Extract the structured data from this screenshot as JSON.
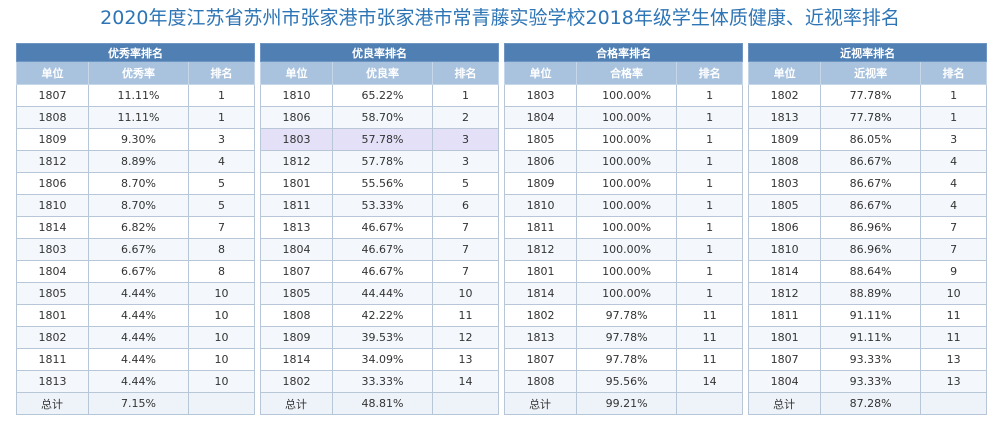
{
  "page_title": "2020年度江苏省苏州市张家港市张家港市常青藤实验学校2018年级学生体质健康、近视率排名",
  "tables": [
    {
      "title": "优秀率排名",
      "headers": [
        "单位",
        "优秀率",
        "排名"
      ],
      "rows": [
        [
          "1807",
          "11.11%",
          "1"
        ],
        [
          "1808",
          "11.11%",
          "1"
        ],
        [
          "1809",
          "9.30%",
          "3"
        ],
        [
          "1812",
          "8.89%",
          "4"
        ],
        [
          "1806",
          "8.70%",
          "5"
        ],
        [
          "1810",
          "8.70%",
          "5"
        ],
        [
          "1814",
          "6.82%",
          "7"
        ],
        [
          "1803",
          "6.67%",
          "8"
        ],
        [
          "1804",
          "6.67%",
          "8"
        ],
        [
          "1805",
          "4.44%",
          "10"
        ],
        [
          "1801",
          "4.44%",
          "10"
        ],
        [
          "1802",
          "4.44%",
          "10"
        ],
        [
          "1811",
          "4.44%",
          "10"
        ],
        [
          "1813",
          "4.44%",
          "10"
        ]
      ],
      "total": [
        "总计",
        "7.15%",
        ""
      ]
    },
    {
      "title": "优良率排名",
      "headers": [
        "单位",
        "优良率",
        "排名"
      ],
      "rows": [
        [
          "1810",
          "65.22%",
          "1"
        ],
        [
          "1806",
          "58.70%",
          "2"
        ],
        [
          "1803",
          "57.78%",
          "3"
        ],
        [
          "1812",
          "57.78%",
          "3"
        ],
        [
          "1801",
          "55.56%",
          "5"
        ],
        [
          "1811",
          "53.33%",
          "6"
        ],
        [
          "1813",
          "46.67%",
          "7"
        ],
        [
          "1804",
          "46.67%",
          "7"
        ],
        [
          "1807",
          "46.67%",
          "7"
        ],
        [
          "1805",
          "44.44%",
          "10"
        ],
        [
          "1808",
          "42.22%",
          "11"
        ],
        [
          "1809",
          "39.53%",
          "12"
        ],
        [
          "1814",
          "34.09%",
          "13"
        ],
        [
          "1802",
          "33.33%",
          "14"
        ]
      ],
      "total": [
        "总计",
        "48.81%",
        ""
      ]
    },
    {
      "title": "合格率排名",
      "headers": [
        "单位",
        "合格率",
        "排名"
      ],
      "rows": [
        [
          "1803",
          "100.00%",
          "1"
        ],
        [
          "1804",
          "100.00%",
          "1"
        ],
        [
          "1805",
          "100.00%",
          "1"
        ],
        [
          "1806",
          "100.00%",
          "1"
        ],
        [
          "1809",
          "100.00%",
          "1"
        ],
        [
          "1810",
          "100.00%",
          "1"
        ],
        [
          "1811",
          "100.00%",
          "1"
        ],
        [
          "1812",
          "100.00%",
          "1"
        ],
        [
          "1801",
          "100.00%",
          "1"
        ],
        [
          "1814",
          "100.00%",
          "1"
        ],
        [
          "1802",
          "97.78%",
          "11"
        ],
        [
          "1813",
          "97.78%",
          "11"
        ],
        [
          "1807",
          "97.78%",
          "11"
        ],
        [
          "1808",
          "95.56%",
          "14"
        ]
      ],
      "total": [
        "总计",
        "99.21%",
        ""
      ]
    },
    {
      "title": "近视率排名",
      "headers": [
        "单位",
        "近视率",
        "排名"
      ],
      "rows": [
        [
          "1802",
          "77.78%",
          "1"
        ],
        [
          "1813",
          "77.78%",
          "1"
        ],
        [
          "1809",
          "86.05%",
          "3"
        ],
        [
          "1808",
          "86.67%",
          "4"
        ],
        [
          "1803",
          "86.67%",
          "4"
        ],
        [
          "1805",
          "86.67%",
          "4"
        ],
        [
          "1806",
          "86.96%",
          "7"
        ],
        [
          "1810",
          "86.96%",
          "7"
        ],
        [
          "1814",
          "88.64%",
          "9"
        ],
        [
          "1812",
          "88.89%",
          "10"
        ],
        [
          "1811",
          "91.11%",
          "11"
        ],
        [
          "1801",
          "91.11%",
          "11"
        ],
        [
          "1807",
          "93.33%",
          "13"
        ],
        [
          "1804",
          "93.33%",
          "13"
        ]
      ],
      "total": [
        "总计",
        "87.28%",
        ""
      ]
    }
  ]
}
